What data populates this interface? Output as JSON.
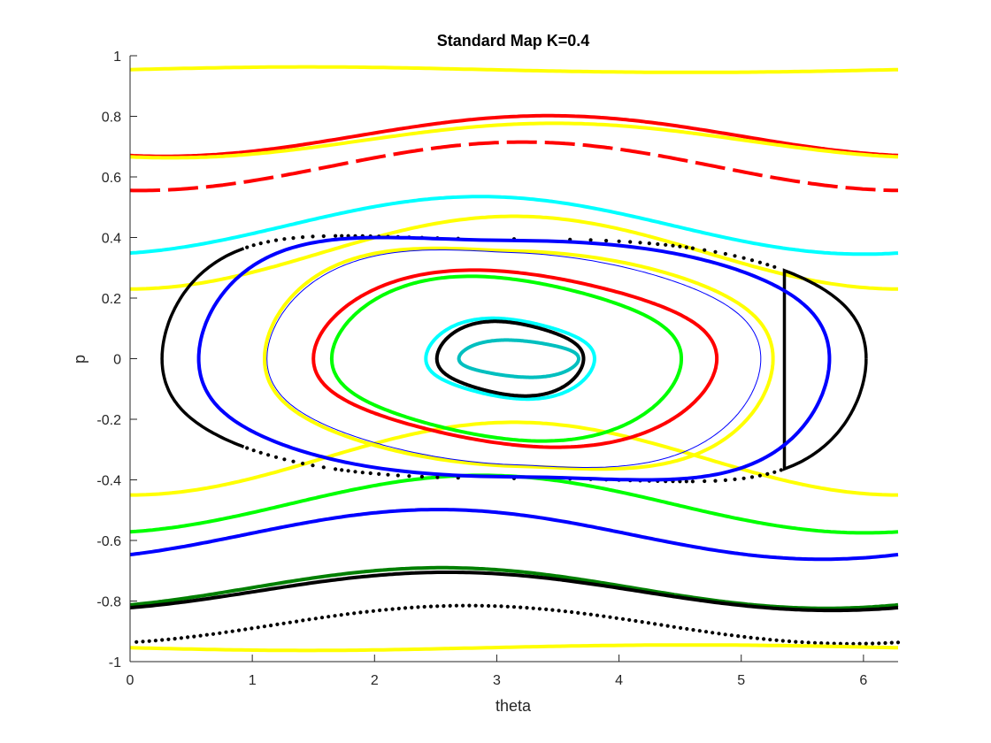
{
  "chart_data": {
    "type": "scatter",
    "title": "Standard Map K=0.4",
    "xlabel": "theta",
    "ylabel": "p",
    "xlim": [
      0,
      6.2832
    ],
    "ylim": [
      -1,
      1
    ],
    "xticks": [
      0,
      1,
      2,
      3,
      4,
      5,
      6
    ],
    "yticks": [
      -1,
      -0.8,
      -0.6,
      -0.4,
      -0.2,
      0,
      0.2,
      0.4,
      0.6,
      0.8,
      1
    ],
    "xtick_labels": [
      "0",
      "1",
      "2",
      "3",
      "4",
      "5",
      "6"
    ],
    "ytick_labels": [
      "-1",
      "-0.8",
      "-0.6",
      "-0.4",
      "-0.2",
      "0",
      "0.2",
      "0.4",
      "0.6",
      "0.8",
      "1"
    ],
    "K": 0.4,
    "grid": false,
    "legend": "none",
    "series": [
      {
        "kind": "invariant_curve",
        "color": "#ff0000",
        "mean_p": 0.735,
        "amp": 0.067,
        "phase": -0.28,
        "style": "solid"
      },
      {
        "kind": "invariant_curve",
        "color": "#ffff00",
        "mean_p": 0.72,
        "amp": 0.057,
        "phase": -0.33,
        "style": "solid"
      },
      {
        "kind": "invariant_curve",
        "color": "#ff0000",
        "mean_p": 0.635,
        "amp": 0.08,
        "phase": -0.07,
        "style": "dashed"
      },
      {
        "kind": "invariant_curve",
        "color": "#00ffff",
        "mean_p": 0.44,
        "amp": 0.095,
        "phase": 0.28,
        "style": "solid"
      },
      {
        "kind": "invariant_curve",
        "color": "#ffff00",
        "mean_p": 0.35,
        "amp": 0.12,
        "phase": 0.0,
        "style": "solid"
      },
      {
        "kind": "invariant_curve",
        "color": "#ffff00",
        "mean_p": -0.33,
        "amp": 0.12,
        "phase": 0.0,
        "style": "solid"
      },
      {
        "kind": "invariant_curve",
        "color": "#00ff00",
        "mean_p": -0.48,
        "amp": 0.095,
        "phase": 0.27,
        "style": "solid"
      },
      {
        "kind": "invariant_curve",
        "color": "#0000ff",
        "mean_p": -0.58,
        "amp": 0.082,
        "phase": 0.62,
        "style": "solid"
      },
      {
        "kind": "invariant_curve",
        "color": "#007f00",
        "mean_p": -0.757,
        "amp": 0.067,
        "phase": 0.59,
        "style": "solid"
      },
      {
        "kind": "invariant_curve",
        "color": "#000000",
        "mean_p": -0.768,
        "amp": 0.063,
        "phase": 0.54,
        "style": "solid"
      },
      {
        "kind": "invariant_curve",
        "color": "#000000",
        "mean_p": -0.878,
        "amp": 0.063,
        "phase": 0.38,
        "style": "dotted"
      },
      {
        "kind": "resonance_chain",
        "color": "#ffff00",
        "p_center": -1.0,
        "amp": 0.055,
        "theta_center": 1.45,
        "branch": "lower"
      },
      {
        "kind": "island_orbit",
        "color": "#000000",
        "theta_center": 3.1416,
        "half_width": 2.88,
        "p_half_height": 0.395,
        "sharpness": 2.2,
        "style": "mixed"
      },
      {
        "kind": "island_orbit",
        "color": "#0000ff",
        "theta_center": 3.1416,
        "half_width": 2.58,
        "p_half_height": 0.39,
        "sharpness": 1.8,
        "style": "solid"
      },
      {
        "kind": "island_orbit",
        "color": "#ffff00",
        "theta_center": 3.18,
        "half_width": 2.08,
        "p_half_height": 0.355,
        "sharpness": 1.4,
        "style": "solid"
      },
      {
        "kind": "island_orbit",
        "color": "#0000ff",
        "theta_center": 3.14,
        "half_width": 2.02,
        "p_half_height": 0.35,
        "sharpness": 1.3,
        "style": "thin"
      },
      {
        "kind": "island_orbit",
        "color": "#ff0000",
        "theta_center": 3.15,
        "half_width": 1.65,
        "p_half_height": 0.285,
        "sharpness": 1.0,
        "style": "solid"
      },
      {
        "kind": "island_orbit",
        "color": "#00ff00",
        "theta_center": 3.08,
        "half_width": 1.43,
        "p_half_height": 0.265,
        "sharpness": 1.0,
        "style": "solid"
      },
      {
        "kind": "island_orbit",
        "color": "#00ffff",
        "theta_center": 3.11,
        "half_width": 0.69,
        "p_half_height": 0.13,
        "sharpness": 1.0,
        "style": "solid"
      },
      {
        "kind": "island_orbit",
        "color": "#000000",
        "theta_center": 3.11,
        "half_width": 0.6,
        "p_half_height": 0.12,
        "sharpness": 1.0,
        "style": "solid"
      },
      {
        "kind": "island_orbit",
        "color": "#00bfbf",
        "theta_center": 3.18,
        "half_width": 0.49,
        "p_half_height": 0.06,
        "sharpness": 1.0,
        "style": "solid"
      }
    ]
  }
}
